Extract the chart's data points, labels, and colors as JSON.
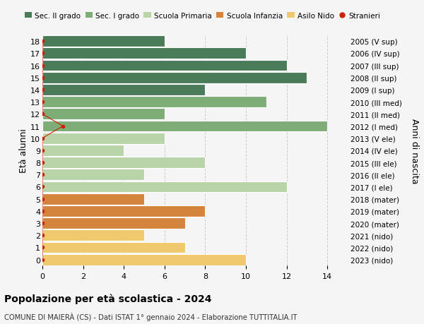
{
  "ages": [
    18,
    17,
    16,
    15,
    14,
    13,
    12,
    11,
    10,
    9,
    8,
    7,
    6,
    5,
    4,
    3,
    2,
    1,
    0
  ],
  "right_labels": [
    "2005 (V sup)",
    "2006 (IV sup)",
    "2007 (III sup)",
    "2008 (II sup)",
    "2009 (I sup)",
    "2010 (III med)",
    "2011 (II med)",
    "2012 (I med)",
    "2013 (V ele)",
    "2014 (IV ele)",
    "2015 (III ele)",
    "2016 (II ele)",
    "2017 (I ele)",
    "2018 (mater)",
    "2019 (mater)",
    "2020 (mater)",
    "2021 (nido)",
    "2022 (nido)",
    "2023 (nido)"
  ],
  "values": [
    6,
    10,
    12,
    13,
    8,
    11,
    6,
    14,
    6,
    4,
    8,
    5,
    12,
    5,
    8,
    7,
    5,
    7,
    10
  ],
  "colors": [
    "#4a7c59",
    "#4a7c59",
    "#4a7c59",
    "#4a7c59",
    "#4a7c59",
    "#7fad78",
    "#7fad78",
    "#7fad78",
    "#b8d4a8",
    "#b8d4a8",
    "#b8d4a8",
    "#b8d4a8",
    "#b8d4a8",
    "#d4843c",
    "#d4843c",
    "#d4843c",
    "#f0c96e",
    "#f0c96e",
    "#f0c96e"
  ],
  "stranieri_x": [
    0,
    0,
    0,
    0,
    0,
    0,
    0,
    1,
    0,
    0,
    0,
    0,
    0,
    0,
    0,
    0,
    0,
    0,
    0
  ],
  "legend_labels": [
    "Sec. II grado",
    "Sec. I grado",
    "Scuola Primaria",
    "Scuola Infanzia",
    "Asilo Nido",
    "Stranieri"
  ],
  "legend_colors": [
    "#4a7c59",
    "#7fad78",
    "#b8d4a8",
    "#d4843c",
    "#f0c96e",
    "#cc2200"
  ],
  "ylabel": "Età alunni",
  "ylabel_right": "Anni di nascita",
  "title": "Popolazione per età scolastica - 2024",
  "subtitle": "COMUNE DI MAIERÀ (CS) - Dati ISTAT 1° gennaio 2024 - Elaborazione TUTTITALIA.IT",
  "xlim": [
    0,
    15
  ],
  "xticks": [
    0,
    2,
    4,
    6,
    8,
    10,
    12,
    14
  ],
  "background_color": "#f5f5f5",
  "grid_color": "#cccccc"
}
